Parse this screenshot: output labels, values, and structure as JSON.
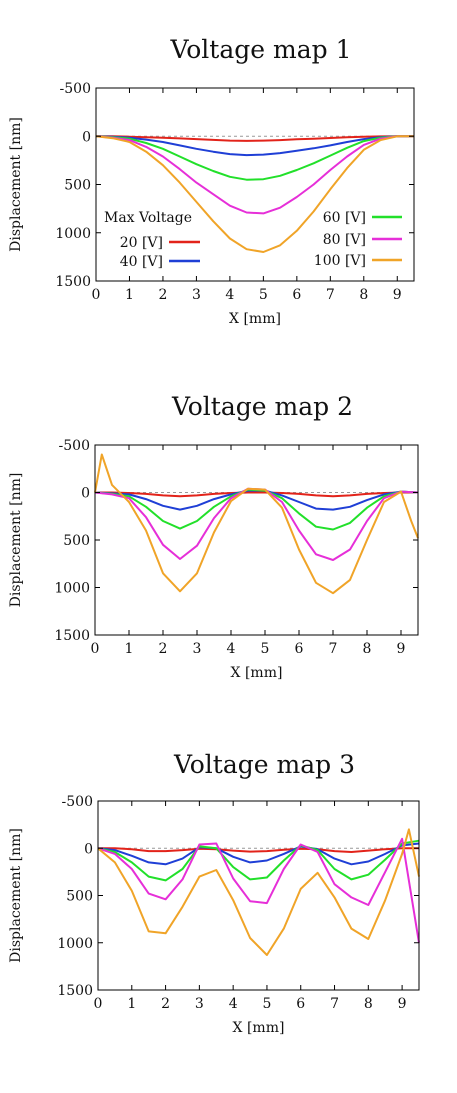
{
  "chart_data": [
    {
      "type": "line",
      "title": "Voltage map 1",
      "xlabel": "X [mm]",
      "ylabel": "Displacement [nm]",
      "xlim": [
        0,
        9.5
      ],
      "ylim": [
        1500,
        -500
      ],
      "y_inverted": true,
      "xticks": [
        "0",
        "1",
        "2",
        "3",
        "4",
        "5",
        "6",
        "7",
        "8",
        "9"
      ],
      "yticks": [
        "-500",
        "0",
        "500",
        "1000",
        "1500"
      ],
      "legend": {
        "title": "Max Voltage",
        "placement": "center"
      },
      "series": [
        {
          "name": "20 [V]",
          "color": "#e2231a",
          "x": [
            0,
            0.5,
            1,
            1.5,
            2,
            2.5,
            3,
            3.5,
            4,
            4.5,
            5,
            5.5,
            6,
            6.5,
            7,
            7.5,
            8,
            8.5,
            9,
            9.5
          ],
          "y": [
            0,
            0,
            5,
            10,
            15,
            22,
            30,
            38,
            45,
            48,
            45,
            40,
            32,
            25,
            18,
            10,
            5,
            2,
            0,
            0
          ]
        },
        {
          "name": "40 [V]",
          "color": "#1f3fd6",
          "x": [
            0,
            0.5,
            1,
            1.5,
            2,
            2.5,
            3,
            3.5,
            4,
            4.5,
            5,
            5.5,
            6,
            6.5,
            7,
            7.5,
            8,
            8.5,
            9,
            9.5
          ],
          "y": [
            0,
            5,
            15,
            35,
            60,
            95,
            130,
            160,
            185,
            195,
            190,
            175,
            150,
            125,
            95,
            60,
            30,
            10,
            0,
            0
          ]
        },
        {
          "name": "60 [V]",
          "color": "#22e02a",
          "x": [
            0,
            0.5,
            1,
            1.5,
            2,
            2.5,
            3,
            3.5,
            4,
            4.5,
            5,
            5.5,
            6,
            6.5,
            7,
            7.5,
            8,
            8.5,
            9,
            9.5
          ],
          "y": [
            0,
            10,
            25,
            70,
            130,
            210,
            290,
            360,
            420,
            450,
            445,
            410,
            350,
            280,
            200,
            120,
            50,
            15,
            0,
            0
          ]
        },
        {
          "name": "80 [V]",
          "color": "#e62fd8",
          "x": [
            0,
            0.5,
            1,
            1.5,
            2,
            2.5,
            3,
            3.5,
            4,
            4.5,
            5,
            5.5,
            6,
            6.5,
            7,
            7.5,
            8,
            8.5,
            9,
            9.5
          ],
          "y": [
            0,
            15,
            40,
            110,
            210,
            340,
            480,
            600,
            720,
            790,
            800,
            740,
            630,
            500,
            350,
            210,
            90,
            25,
            0,
            0
          ]
        },
        {
          "name": "100 [V]",
          "color": "#f0a428",
          "x": [
            0,
            0.5,
            1,
            1.5,
            2,
            2.5,
            3,
            3.5,
            4,
            4.5,
            5,
            5.5,
            6,
            6.5,
            7,
            7.5,
            8,
            8.5,
            9,
            9.5
          ],
          "y": [
            0,
            20,
            60,
            160,
            300,
            480,
            680,
            880,
            1060,
            1170,
            1200,
            1130,
            980,
            780,
            550,
            330,
            140,
            40,
            0,
            0
          ]
        }
      ]
    },
    {
      "type": "line",
      "title": "Voltage map 2",
      "xlabel": "X [mm]",
      "ylabel": "Displacement [nm]",
      "xlim": [
        0,
        9.5
      ],
      "ylim": [
        1500,
        -500
      ],
      "y_inverted": true,
      "xticks": [
        "0",
        "1",
        "2",
        "3",
        "4",
        "5",
        "6",
        "7",
        "8",
        "9"
      ],
      "yticks": [
        "-500",
        "0",
        "500",
        "1000",
        "1500"
      ],
      "series": [
        {
          "name": "20 [V]",
          "color": "#e2231a",
          "x": [
            0,
            0.5,
            1,
            1.5,
            2,
            2.5,
            3,
            3.5,
            4,
            4.5,
            5,
            5.5,
            6,
            6.5,
            7,
            7.5,
            8,
            8.5,
            9,
            9.5
          ],
          "y": [
            0,
            0,
            5,
            15,
            30,
            40,
            30,
            15,
            5,
            0,
            0,
            5,
            15,
            30,
            40,
            30,
            15,
            5,
            0,
            0
          ]
        },
        {
          "name": "40 [V]",
          "color": "#1f3fd6",
          "x": [
            0,
            0.5,
            1,
            1.5,
            2,
            2.5,
            3,
            3.5,
            4,
            4.5,
            5,
            5.5,
            6,
            6.5,
            7,
            7.5,
            8,
            8.5,
            9,
            9.5
          ],
          "y": [
            0,
            10,
            20,
            70,
            140,
            180,
            140,
            70,
            20,
            -20,
            -20,
            30,
            100,
            170,
            180,
            150,
            80,
            20,
            -10,
            0
          ]
        },
        {
          "name": "60 [V]",
          "color": "#22e02a",
          "x": [
            0,
            0.5,
            1,
            1.5,
            2,
            2.5,
            3,
            3.5,
            4,
            4.5,
            5,
            5.5,
            6,
            6.5,
            7,
            7.5,
            8,
            8.5,
            9,
            9.5
          ],
          "y": [
            0,
            15,
            40,
            150,
            300,
            380,
            300,
            150,
            40,
            -30,
            -20,
            60,
            220,
            360,
            390,
            320,
            160,
            40,
            -10,
            0
          ]
        },
        {
          "name": "80 [V]",
          "color": "#e62fd8",
          "x": [
            0,
            0.5,
            1,
            1.5,
            2,
            2.5,
            3,
            3.5,
            4,
            4.5,
            5,
            5.5,
            6,
            6.5,
            7,
            7.5,
            8,
            8.5,
            9,
            9.5
          ],
          "y": [
            0,
            20,
            60,
            260,
            550,
            700,
            560,
            270,
            60,
            -40,
            -30,
            100,
            400,
            650,
            710,
            600,
            300,
            60,
            -10,
            0
          ]
        },
        {
          "name": "100 [V]",
          "color": "#f0a428",
          "x": [
            0,
            0.2,
            0.5,
            1,
            1.5,
            2,
            2.5,
            3,
            3.5,
            4,
            4.5,
            5,
            5.5,
            6,
            6.5,
            7,
            7.5,
            8,
            8.5,
            9,
            9.3,
            9.5
          ],
          "y": [
            0,
            -400,
            -80,
            100,
            400,
            850,
            1040,
            850,
            420,
            90,
            -40,
            -30,
            160,
            600,
            950,
            1060,
            920,
            500,
            100,
            -10,
            300,
            480
          ]
        }
      ]
    },
    {
      "type": "line",
      "title": "Voltage map 3",
      "xlabel": "X [mm]",
      "ylabel": "Displacement [nm]",
      "xlim": [
        0,
        9.5
      ],
      "ylim": [
        1500,
        -500
      ],
      "y_inverted": true,
      "xticks": [
        "0",
        "1",
        "2",
        "3",
        "4",
        "5",
        "6",
        "7",
        "8",
        "9"
      ],
      "yticks": [
        "-500",
        "0",
        "500",
        "1000",
        "1500"
      ],
      "series": [
        {
          "name": "20 [V]",
          "color": "#e2231a",
          "x": [
            0,
            0.5,
            1,
            1.5,
            2,
            2.5,
            3,
            3.5,
            4,
            4.5,
            5,
            5.5,
            6,
            6.5,
            7,
            7.5,
            8,
            8.5,
            9,
            9.5
          ],
          "y": [
            0,
            0,
            10,
            30,
            30,
            20,
            5,
            10,
            25,
            35,
            30,
            15,
            5,
            10,
            30,
            40,
            25,
            10,
            0,
            0
          ]
        },
        {
          "name": "40 [V]",
          "color": "#1f3fd6",
          "x": [
            0,
            0.5,
            1,
            1.5,
            2,
            2.5,
            3,
            3.5,
            4,
            4.5,
            5,
            5.5,
            6,
            6.5,
            7,
            7.5,
            8,
            8.5,
            9,
            9.5
          ],
          "y": [
            0,
            20,
            80,
            150,
            170,
            110,
            -10,
            0,
            90,
            150,
            130,
            60,
            -20,
            10,
            110,
            170,
            140,
            60,
            -30,
            -50
          ]
        },
        {
          "name": "60 [V]",
          "color": "#22e02a",
          "x": [
            0,
            0.5,
            1,
            1.5,
            2,
            2.5,
            3,
            3.5,
            4,
            4.5,
            5,
            5.5,
            6,
            6.5,
            7,
            7.5,
            8,
            8.5,
            9,
            9.5
          ],
          "y": [
            0,
            40,
            150,
            300,
            340,
            220,
            -20,
            0,
            200,
            330,
            310,
            130,
            -30,
            20,
            220,
            330,
            280,
            120,
            -50,
            -80
          ]
        },
        {
          "name": "80 [V]",
          "color": "#e62fd8",
          "x": [
            0,
            0.5,
            1,
            1.5,
            2,
            2.5,
            3,
            3.5,
            4,
            4.5,
            5,
            5.5,
            6,
            6.5,
            7,
            7.5,
            8,
            8.5,
            9,
            9.5
          ],
          "y": [
            0,
            60,
            220,
            480,
            540,
            330,
            -40,
            -50,
            320,
            560,
            580,
            220,
            -40,
            40,
            380,
            520,
            600,
            250,
            -100,
            1000
          ]
        },
        {
          "name": "100 [V]",
          "color": "#f0a428",
          "x": [
            0,
            0.5,
            1,
            1.5,
            2,
            2.5,
            3,
            3.5,
            4,
            4.5,
            5,
            5.5,
            6,
            6.5,
            7,
            7.5,
            8,
            8.5,
            9,
            9.2,
            9.5
          ],
          "y": [
            0,
            150,
            450,
            880,
            900,
            620,
            300,
            230,
            550,
            950,
            1130,
            850,
            430,
            260,
            520,
            850,
            960,
            550,
            60,
            -200,
            300
          ]
        }
      ]
    }
  ]
}
